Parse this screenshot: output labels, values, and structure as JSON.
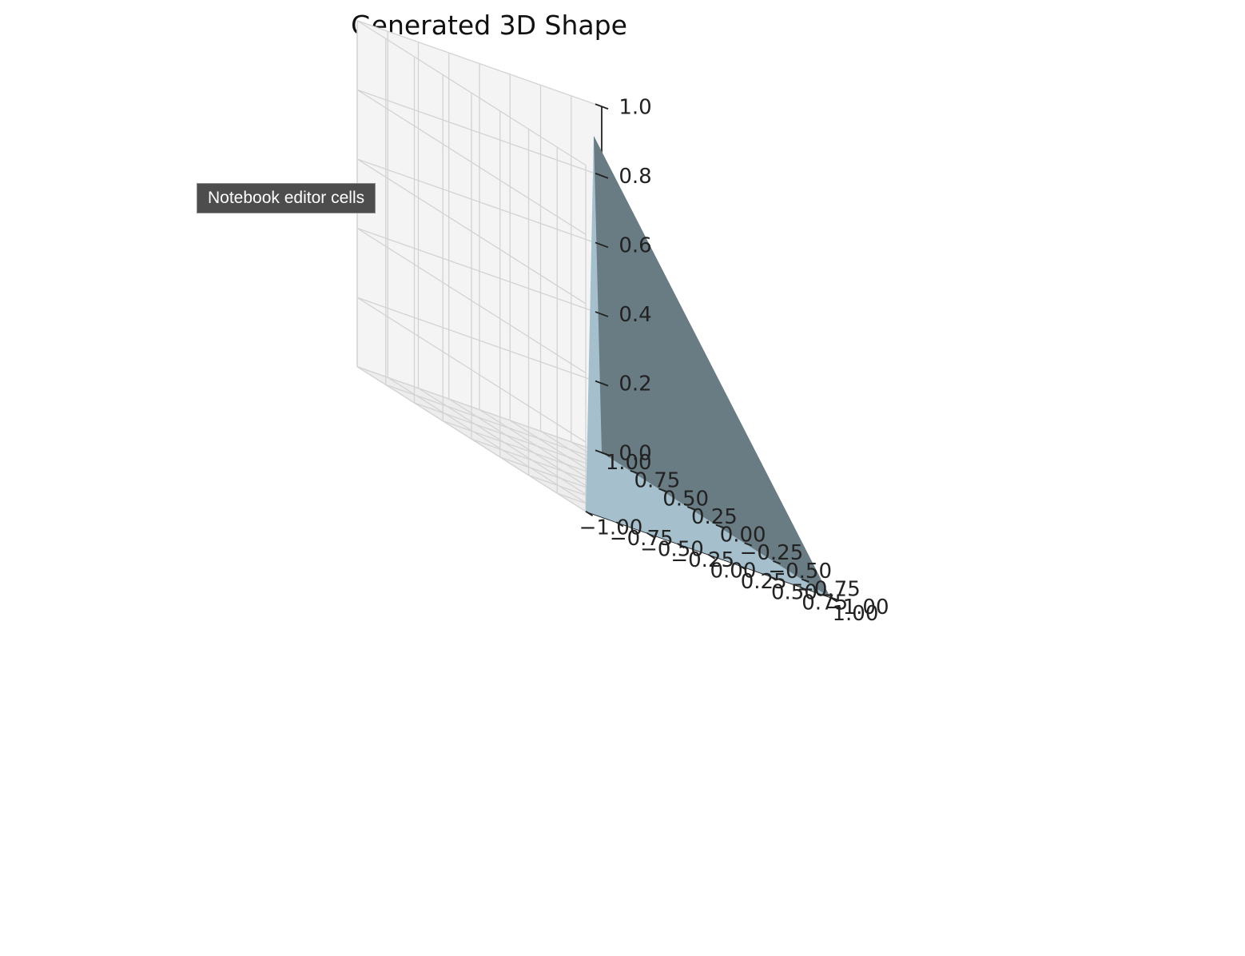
{
  "chart_data": {
    "type": "surface3d",
    "title": "Generated 3D Shape",
    "xlabel": "",
    "ylabel": "",
    "zlabel": "",
    "xlim": [
      -1.0,
      1.0
    ],
    "ylim": [
      -1.0,
      1.0
    ],
    "zlim": [
      0.0,
      1.0
    ],
    "x_ticks": [
      "−1.00",
      "−0.75",
      "−0.50",
      "−0.25",
      "0.00",
      "0.25",
      "0.50",
      "0.75",
      "1.00"
    ],
    "y_ticks": [
      "−1.00",
      "−0.75",
      "−0.50",
      "−0.25",
      "0.00",
      "0.25",
      "0.50",
      "0.75",
      "1.00"
    ],
    "z_ticks": [
      "0.0",
      "0.2",
      "0.4",
      "0.6",
      "0.8",
      "1.0"
    ],
    "grid": true,
    "shape": {
      "name": "",
      "apex": [
        0.0,
        0.0,
        1.0
      ],
      "base_corners": [
        [
          -1.0,
          -1.0,
          0.0
        ],
        [
          1.0,
          -1.0,
          0.0
        ],
        [
          1.0,
          1.0,
          0.0
        ],
        [
          -1.0,
          1.0,
          0.0
        ]
      ],
      "face_colors": {
        "front": "#a5c0cc",
        "right": "#697b83"
      }
    },
    "colors": {
      "pane_floor": "#f2f2f2",
      "pane_left": "#ededed",
      "pane_back": "#f4f4f4",
      "grid": "#d3d3d3"
    }
  },
  "tooltip": {
    "text": "Notebook editor cells"
  }
}
